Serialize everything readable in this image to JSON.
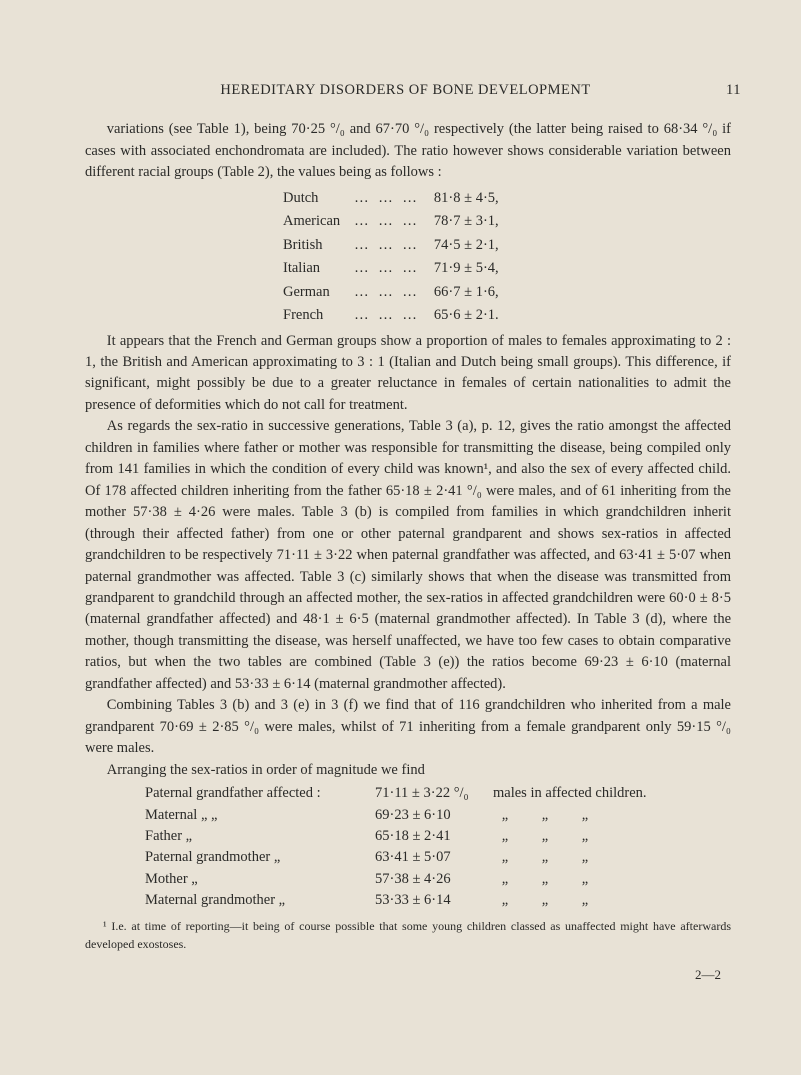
{
  "header": {
    "title": "HEREDITARY DISORDERS OF BONE DEVELOPMENT",
    "page_number": "11"
  },
  "para1_a": "variations (see Table 1), being 70·25 °/₀ and 67·70 °/₀ respectively (the latter being raised to 68·34 °/₀ if cases with associated enchondromata are included). The ratio however shows considerable variation between different racial groups (Table 2), the values being as follows :",
  "stats": [
    {
      "label": "Dutch",
      "dots": "…    …    …",
      "value": "81·8 ± 4·5,"
    },
    {
      "label": "American",
      "dots": "…    …    …",
      "value": "78·7 ± 3·1,"
    },
    {
      "label": "British",
      "dots": "…    …    …",
      "value": "74·5 ± 2·1,"
    },
    {
      "label": "Italian",
      "dots": "…    …    …",
      "value": "71·9 ± 5·4,"
    },
    {
      "label": "German",
      "dots": "…    …    …",
      "value": "66·7 ± 1·6,"
    },
    {
      "label": "French",
      "dots": "…    …    …",
      "value": "65·6 ± 2·1."
    }
  ],
  "para2": "It appears that the French and German groups show a proportion of males to females approximating to 2 : 1, the British and American approximating to 3 : 1 (Italian and Dutch being small groups). This difference, if significant, might possibly be due to a greater reluctance in females of certain nationalities to admit the presence of deformities which do not call for treatment.",
  "para3": "As regards the sex-ratio in successive generations, Table 3 (a), p. 12, gives the ratio amongst the affected children in families where father or mother was responsible for transmitting the disease, being compiled only from 141 families in which the condition of every child was known¹, and also the sex of every affected child. Of 178 affected children inheriting from the father 65·18 ± 2·41 °/₀ were males, and of 61 inheriting from the mother 57·38 ± 4·26 were males. Table 3 (b) is compiled from families in which grandchildren inherit (through their affected father) from one or other paternal grand­parent and shows sex-ratios in affected grandchildren to be respectively 71·11 ± 3·22 when paternal grandfather was affected, and 63·41 ± 5·07 when paternal grandmother was affected. Table 3 (c) similarly shows that when the disease was transmitted from grandparent to grandchild through an affected mother, the sex-ratios in affected grandchildren were 60·0 ± 8·5 (maternal grandfather affected) and 48·1 ± 6·5 (maternal grandmother affected). In Table 3 (d), where the mother, though transmitting the disease, was herself unaffected, we have too few cases to obtain comparative ratios, but when the two tables are combined (Table 3 (e)) the ratios become 69·23 ± 6·10 (maternal grandfather affected) and 53·33 ± 6·14 (maternal grandmother affected).",
  "para4": "Combining Tables 3 (b) and 3 (e) in 3 (f) we find that of 116 grandchildren who inherited from a male grandparent 70·69 ± 2·85 °/₀ were males, whilst of 71 inheriting from a female grandparent only 59·15 °/₀ were males.",
  "para5": "Arranging the sex-ratios in order of magnitude we find",
  "ratios_header": {
    "label": "Paternal grandfather affected :",
    "val": "71·11 ± 3·22 °/₀",
    "tail": "males in affected children."
  },
  "ratios": [
    {
      "label": "Maternal        „            „",
      "val": "69·23 ± 6·10",
      "q1": "„",
      "q2": "„",
      "q3": "„"
    },
    {
      "label": "Father                         „",
      "val": "65·18 ± 2·41",
      "q1": "„",
      "q2": "„",
      "q3": "„"
    },
    {
      "label": "Paternal grandmother  „",
      "val": "63·41 ± 5·07",
      "q1": "„",
      "q2": "„",
      "q3": "„"
    },
    {
      "label": "Mother                        „",
      "val": "57·38 ± 4·26",
      "q1": "„",
      "q2": "„",
      "q3": "„"
    },
    {
      "label": "Maternal grandmother „",
      "val": "53·33 ± 6·14",
      "q1": "„",
      "q2": "„",
      "q3": "„"
    }
  ],
  "footnote": "¹ I.e. at time of reporting—it being of course possible that some young children classed as unaffected might have afterwards developed exostoses.",
  "signature": "2—2"
}
